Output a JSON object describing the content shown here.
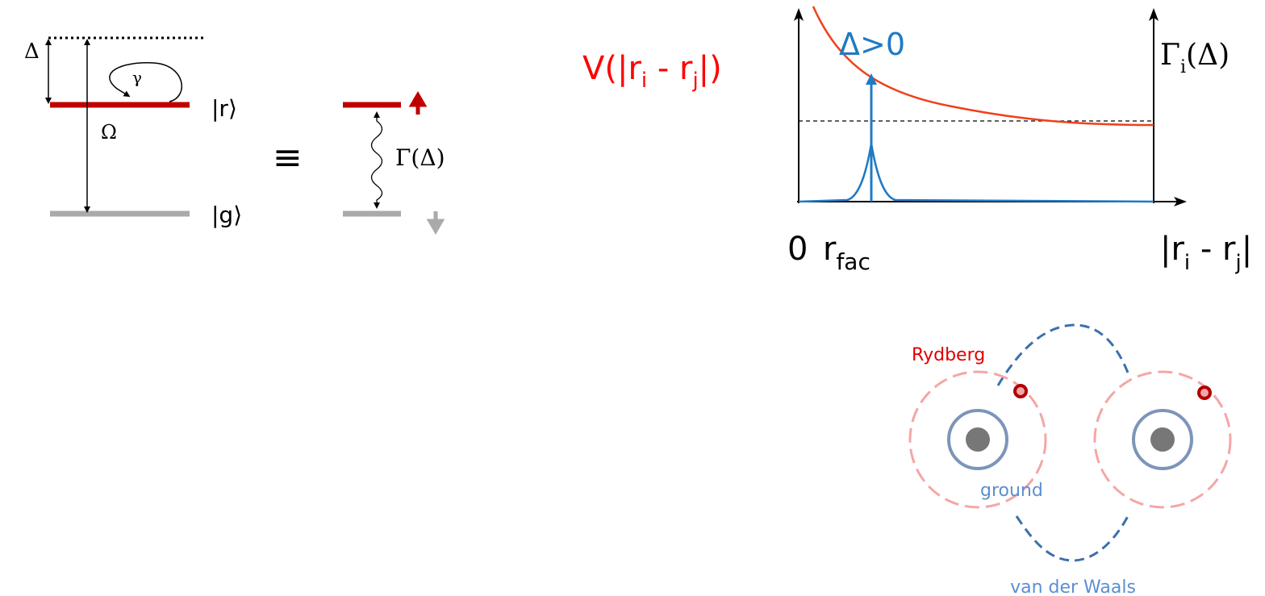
{
  "level_diagram": {
    "detuning": "Δ",
    "decay": "γ",
    "rydberg_state": "|r⟩",
    "rabi": "Ω",
    "ground_state": "|g⟩",
    "equivalence": "≡",
    "effective_rate": "Γ(Δ)"
  },
  "potential_plot": {
    "y_label": [
      "V(|r",
      "i",
      " - r",
      "j",
      "|)"
    ],
    "detuning_label": "Δ>0",
    "rate_label": [
      "Γ",
      "i",
      "(Δ)"
    ],
    "origin": "0",
    "facilitation_radius": [
      "r",
      "fac"
    ],
    "x_label": [
      "|r",
      "i",
      " - r",
      "j",
      "|"
    ]
  },
  "atoms": {
    "rydberg": "Rydberg",
    "ground": "ground",
    "interaction": "van der Waals"
  }
}
